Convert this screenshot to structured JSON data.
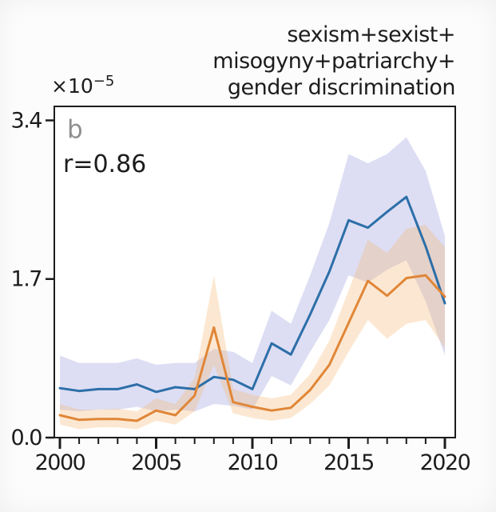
{
  "figure": {
    "title_lines": [
      "sexism+sexist+",
      "misogyny+patriarchy+",
      "gender discrimination"
    ],
    "panel_label": "b",
    "annotation": "r=0.86",
    "offset_label": {
      "base": "×10",
      "exponent": "−5"
    }
  },
  "chart_data": {
    "type": "line",
    "title": "sexism+sexist+misogyny+patriarchy+gender discrimination",
    "xlabel": "",
    "ylabel": "×10⁻⁵",
    "grid": false,
    "legend": "none",
    "xlim": [
      1999.71,
      2020.54
    ],
    "ylim": [
      0,
      3.55
    ],
    "yticks": [
      0.0,
      1.7,
      3.4
    ],
    "ytick_labels": [
      "0.0",
      "1.7",
      "3.4"
    ],
    "xticks": [
      2000,
      2005,
      2010,
      2015,
      2020
    ],
    "xtick_labels": [
      "2000",
      "2005",
      "2010",
      "2015",
      "2020"
    ],
    "x": [
      2000,
      2001,
      2002,
      2003,
      2004,
      2005,
      2006,
      2007,
      2008,
      2009,
      2010,
      2011,
      2012,
      2013,
      2014,
      2015,
      2016,
      2017,
      2018,
      2019,
      2020
    ],
    "series": [
      {
        "id": "blue",
        "color": "#2d6fa8",
        "band_color": "#9598dc",
        "band_opacity": 0.32,
        "values": [
          0.53,
          0.5,
          0.52,
          0.52,
          0.57,
          0.49,
          0.54,
          0.52,
          0.65,
          0.62,
          0.52,
          1.01,
          0.89,
          1.32,
          1.78,
          2.33,
          2.25,
          2.42,
          2.58,
          2.05,
          1.44
        ],
        "band_lower": [
          0.3,
          0.28,
          0.3,
          0.3,
          0.33,
          0.28,
          0.3,
          0.28,
          0.36,
          0.34,
          0.3,
          0.66,
          0.56,
          0.92,
          1.26,
          1.74,
          1.66,
          1.8,
          1.9,
          1.46,
          0.88
        ],
        "band_upper": [
          0.88,
          0.8,
          0.8,
          0.8,
          0.85,
          0.78,
          0.8,
          0.8,
          0.95,
          0.92,
          0.8,
          1.36,
          1.22,
          1.74,
          2.3,
          3.04,
          2.94,
          3.04,
          3.22,
          2.86,
          2.16
        ]
      },
      {
        "id": "orange",
        "color": "#e08637",
        "band_color": "#f6b26a",
        "band_opacity": 0.3,
        "values": [
          0.24,
          0.19,
          0.2,
          0.2,
          0.18,
          0.29,
          0.24,
          0.45,
          1.18,
          0.38,
          0.33,
          0.29,
          0.32,
          0.51,
          0.78,
          1.23,
          1.68,
          1.52,
          1.71,
          1.74,
          1.51
        ],
        "band_lower": [
          0.14,
          0.09,
          0.11,
          0.11,
          0.09,
          0.18,
          0.14,
          0.28,
          0.78,
          0.26,
          0.21,
          0.18,
          0.21,
          0.36,
          0.56,
          0.92,
          1.26,
          1.06,
          1.22,
          1.26,
          0.96
        ],
        "band_upper": [
          0.36,
          0.3,
          0.3,
          0.31,
          0.28,
          0.42,
          0.36,
          0.64,
          1.74,
          0.52,
          0.46,
          0.42,
          0.46,
          0.68,
          1.04,
          1.58,
          2.12,
          1.98,
          2.24,
          2.28,
          2.04
        ]
      }
    ]
  }
}
